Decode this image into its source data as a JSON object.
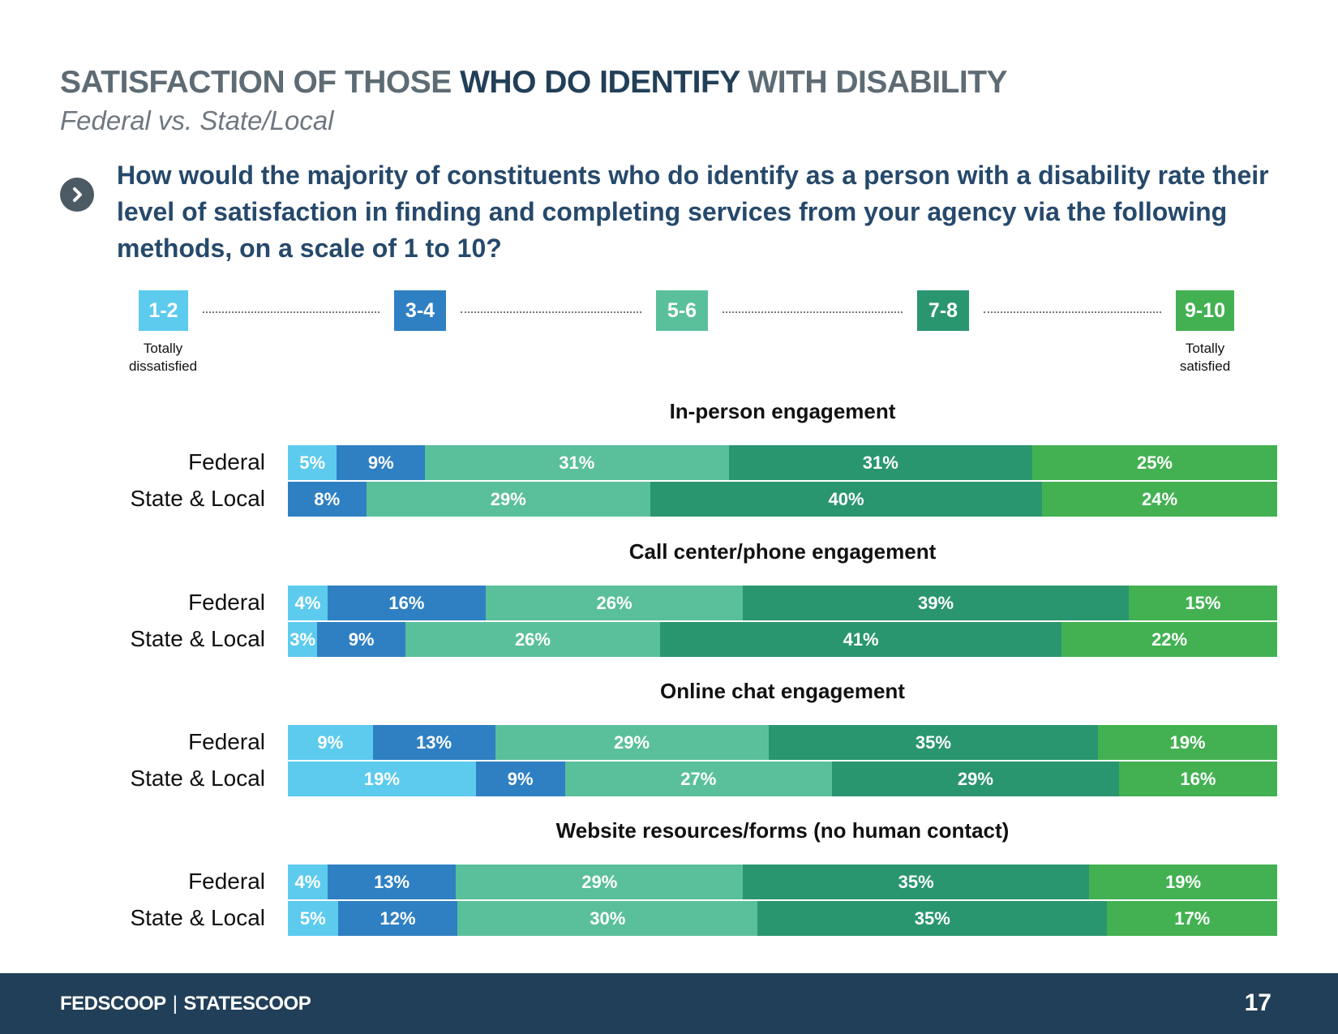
{
  "header": {
    "title_prefix": "SATISFACTION OF THOSE ",
    "title_strong": "WHO DO IDENTIFY",
    "title_suffix": " WITH DISABILITY",
    "subtitle": "Federal vs. State/Local"
  },
  "question": "How would the majority of constituents who do identify as a person with a disability rate their level of satisfaction in finding and completing services from your agency via the following methods, on a scale of 1 to 10?",
  "scale": {
    "items": [
      "1-2",
      "3-4",
      "5-6",
      "7-8",
      "9-10"
    ],
    "colors": [
      "#5dcbee",
      "#2f80c3",
      "#5ac09b",
      "#2a9670",
      "#43b152"
    ],
    "low_label": "Totally dissatisfied",
    "high_label": "Totally satisfied"
  },
  "chart_data": {
    "type": "bar",
    "stacked": true,
    "orientation": "horizontal",
    "series_names": [
      "1-2",
      "3-4",
      "5-6",
      "7-8",
      "9-10"
    ],
    "groups": [
      {
        "title": "In-person engagement",
        "rows": [
          {
            "label": "Federal",
            "values": [
              5,
              9,
              31,
              31,
              25
            ]
          },
          {
            "label": "State & Local",
            "values": [
              0,
              8,
              29,
              40,
              24
            ]
          }
        ]
      },
      {
        "title": "Call center/phone engagement",
        "rows": [
          {
            "label": "Federal",
            "values": [
              4,
              16,
              26,
              39,
              15
            ]
          },
          {
            "label": "State & Local",
            "values": [
              3,
              9,
              26,
              41,
              22
            ]
          }
        ]
      },
      {
        "title": "Online chat engagement",
        "rows": [
          {
            "label": "Federal",
            "values": [
              9,
              13,
              29,
              35,
              19
            ]
          },
          {
            "label": "State & Local",
            "values": [
              19,
              9,
              27,
              29,
              16
            ]
          }
        ]
      },
      {
        "title": "Website resources/forms (no human contact)",
        "rows": [
          {
            "label": "Federal",
            "values": [
              4,
              13,
              29,
              35,
              19
            ]
          },
          {
            "label": "State & Local",
            "values": [
              5,
              12,
              30,
              35,
              17
            ]
          }
        ]
      }
    ]
  },
  "footer": {
    "brand_left": "FEDSCOOP",
    "brand_sep": "|",
    "brand_right": "STATESCOOP",
    "page_number": "17"
  }
}
